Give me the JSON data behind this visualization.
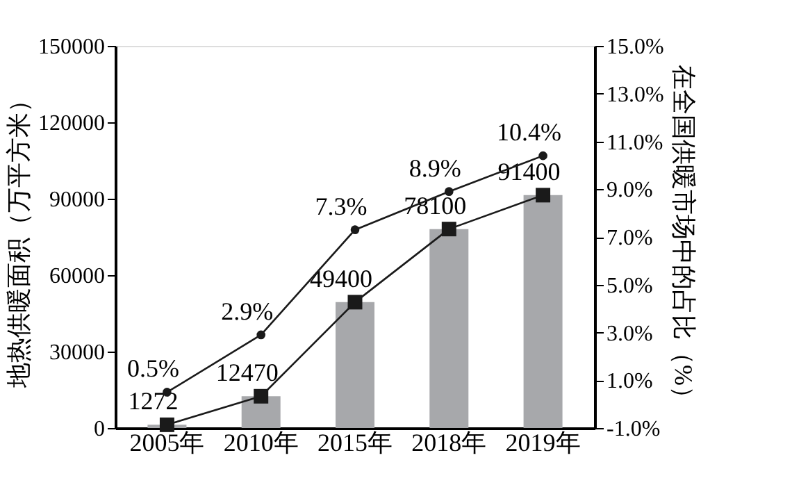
{
  "chart_data": {
    "type": "bar",
    "categories": [
      "2005年",
      "2010年",
      "2015年",
      "2018年",
      "2019年"
    ],
    "ylabel": "地热供暖面积（万平方米）",
    "y2label": "在全国供暖市场中的占比（%）",
    "ylim": [
      0,
      150000
    ],
    "yticks": [
      0,
      30000,
      60000,
      90000,
      120000,
      150000
    ],
    "y2lim": [
      -1,
      15
    ],
    "y2ticks": [
      {
        "value": -1,
        "label": "-1.0%"
      },
      {
        "value": 1,
        "label": "1.0%"
      },
      {
        "value": 3,
        "label": "3.0%"
      },
      {
        "value": 5,
        "label": "5.0%"
      },
      {
        "value": 7,
        "label": "7.0%"
      },
      {
        "value": 9,
        "label": "9.0%"
      },
      {
        "value": 11,
        "label": "11.0%"
      },
      {
        "value": 13,
        "label": "13.0%"
      },
      {
        "value": 15,
        "label": "15.0%"
      }
    ],
    "series": [
      {
        "color": "#a7a8ab",
        "values": [
          1272,
          12470,
          49400,
          78100,
          91400
        ],
        "value_labels": [
          "1272",
          "12470",
          "49400",
          "78100",
          "91400"
        ]
      },
      {
        "type": "line",
        "color": "#1a1a1a",
        "marker": "square",
        "values": [
          1272,
          12470,
          49400,
          78100,
          91400
        ]
      },
      {
        "type": "line",
        "axis": "y2",
        "color": "#1a1a1a",
        "marker": "circle",
        "values": [
          0.5,
          2.9,
          7.3,
          8.9,
          10.4
        ],
        "value_labels": [
          "0.5%",
          "2.9%",
          "7.3%",
          "8.9%",
          "10.4%"
        ]
      }
    ],
    "grid": false
  }
}
